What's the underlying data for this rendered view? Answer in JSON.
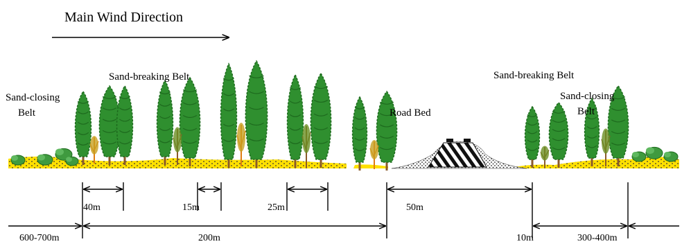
{
  "title": "Main Wind Direction",
  "labels": {
    "sand_closing_left": [
      "Sand-closing",
      "Belt"
    ],
    "sand_breaking_left": "Sand-breaking Belt",
    "road_bed": "Road Bed",
    "sand_breaking_right": "Sand-breaking Belt",
    "sand_closing_right": [
      "Sand-closing",
      "Belt"
    ]
  },
  "measurements": {
    "d40": "40m",
    "d15": "15m",
    "d25": "25m",
    "d50": "50m",
    "d600": "600-700m",
    "d200": "200m",
    "d10": "10m",
    "d300": "300-400m"
  },
  "colors": {
    "sand": "#ffe000",
    "tree_dark": "#1e6b1e",
    "tree": "#2f8f2f",
    "trunk": "#8a5a2b",
    "shrub_orange": "#e07b10"
  }
}
